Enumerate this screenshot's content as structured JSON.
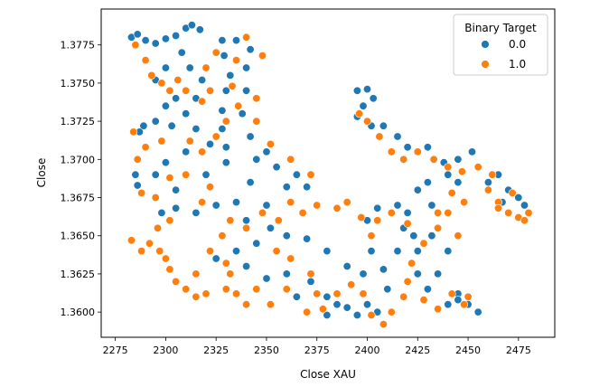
{
  "chart_data": {
    "type": "scatter",
    "title": "",
    "xlabel": "Close XAU",
    "ylabel": "Close",
    "xlim": [
      2268,
      2493
    ],
    "ylim": [
      1.35835,
      1.37985
    ],
    "xticks": [
      2275,
      2300,
      2325,
      2350,
      2375,
      2400,
      2425,
      2450,
      2475
    ],
    "xtick_labels": [
      "2275",
      "2300",
      "2325",
      "2350",
      "2375",
      "2400",
      "2425",
      "2450",
      "2475"
    ],
    "yticks": [
      1.36,
      1.3625,
      1.365,
      1.3675,
      1.37,
      1.3725,
      1.375,
      1.3775
    ],
    "ytick_labels": [
      "1.3600",
      "1.3625",
      "1.3650",
      "1.3675",
      "1.3700",
      "1.3725",
      "1.3750",
      "1.3775"
    ],
    "grid": false,
    "legend": {
      "title": "Binary Target",
      "placement": "top-right",
      "entries": [
        {
          "label": "0.0",
          "color": "#1f77b4"
        },
        {
          "label": "1.0",
          "color": "#ff7f0e"
        }
      ]
    },
    "series": [
      {
        "name": "0.0",
        "color": "#1f77b4",
        "points": [
          [
            2283,
            1.378
          ],
          [
            2286,
            1.3782
          ],
          [
            2290,
            1.3778
          ],
          [
            2295,
            1.3776
          ],
          [
            2300,
            1.3779
          ],
          [
            2305,
            1.3781
          ],
          [
            2310,
            1.3786
          ],
          [
            2313,
            1.3788
          ],
          [
            2317,
            1.3785
          ],
          [
            2308,
            1.377
          ],
          [
            2300,
            1.376
          ],
          [
            2295,
            1.3752
          ],
          [
            2312,
            1.376
          ],
          [
            2318,
            1.3752
          ],
          [
            2315,
            1.374
          ],
          [
            2305,
            1.374
          ],
          [
            2300,
            1.3735
          ],
          [
            2310,
            1.373
          ],
          [
            2303,
            1.3722
          ],
          [
            2295,
            1.3725
          ],
          [
            2289,
            1.3722
          ],
          [
            2287,
            1.3718
          ],
          [
            2315,
            1.372
          ],
          [
            2322,
            1.371
          ],
          [
            2310,
            1.3705
          ],
          [
            2300,
            1.3698
          ],
          [
            2295,
            1.369
          ],
          [
            2285,
            1.369
          ],
          [
            2286,
            1.3683
          ],
          [
            2305,
            1.368
          ],
          [
            2320,
            1.369
          ],
          [
            2330,
            1.3698
          ],
          [
            2330,
            1.3708
          ],
          [
            2328,
            1.372
          ],
          [
            2328,
            1.3732
          ],
          [
            2330,
            1.3745
          ],
          [
            2332,
            1.3755
          ],
          [
            2329,
            1.3768
          ],
          [
            2328,
            1.3778
          ],
          [
            2335,
            1.3778
          ],
          [
            2342,
            1.3772
          ],
          [
            2340,
            1.376
          ],
          [
            2340,
            1.3745
          ],
          [
            2338,
            1.373
          ],
          [
            2342,
            1.3715
          ],
          [
            2345,
            1.37
          ],
          [
            2350,
            1.3705
          ],
          [
            2355,
            1.3695
          ],
          [
            2342,
            1.3685
          ],
          [
            2335,
            1.3672
          ],
          [
            2325,
            1.367
          ],
          [
            2315,
            1.3665
          ],
          [
            2305,
            1.3668
          ],
          [
            2298,
            1.3665
          ],
          [
            2340,
            1.366
          ],
          [
            2350,
            1.367
          ],
          [
            2360,
            1.3682
          ],
          [
            2365,
            1.369
          ],
          [
            2370,
            1.3682
          ],
          [
            2352,
            1.3655
          ],
          [
            2345,
            1.3645
          ],
          [
            2335,
            1.364
          ],
          [
            2325,
            1.3635
          ],
          [
            2360,
            1.365
          ],
          [
            2370,
            1.3648
          ],
          [
            2380,
            1.364
          ],
          [
            2390,
            1.363
          ],
          [
            2398,
            1.3625
          ],
          [
            2402,
            1.364
          ],
          [
            2408,
            1.3628
          ],
          [
            2410,
            1.3615
          ],
          [
            2400,
            1.3605
          ],
          [
            2395,
            1.3598
          ],
          [
            2390,
            1.3603
          ],
          [
            2405,
            1.36
          ],
          [
            2380,
            1.361
          ],
          [
            2372,
            1.362
          ],
          [
            2360,
            1.3625
          ],
          [
            2350,
            1.3622
          ],
          [
            2345,
            1.3615
          ],
          [
            2340,
            1.363
          ],
          [
            2365,
            1.361
          ],
          [
            2415,
            1.364
          ],
          [
            2418,
            1.3655
          ],
          [
            2420,
            1.3665
          ],
          [
            2415,
            1.367
          ],
          [
            2405,
            1.3668
          ],
          [
            2400,
            1.366
          ],
          [
            2425,
            1.364
          ],
          [
            2432,
            1.365
          ],
          [
            2440,
            1.364
          ],
          [
            2435,
            1.3625
          ],
          [
            2445,
            1.3612
          ],
          [
            2440,
            1.3605
          ],
          [
            2430,
            1.3615
          ],
          [
            2425,
            1.3625
          ],
          [
            2395,
            1.3745
          ],
          [
            2400,
            1.3746
          ],
          [
            2403,
            1.374
          ],
          [
            2398,
            1.3735
          ],
          [
            2395,
            1.3728
          ],
          [
            2402,
            1.3722
          ],
          [
            2408,
            1.3722
          ],
          [
            2415,
            1.3715
          ],
          [
            2420,
            1.3708
          ],
          [
            2430,
            1.3708
          ],
          [
            2438,
            1.3698
          ],
          [
            2445,
            1.37
          ],
          [
            2452,
            1.3705
          ],
          [
            2440,
            1.369
          ],
          [
            2445,
            1.3685
          ],
          [
            2430,
            1.3685
          ],
          [
            2425,
            1.368
          ],
          [
            2432,
            1.367
          ],
          [
            2460,
            1.3685
          ],
          [
            2465,
            1.369
          ],
          [
            2470,
            1.368
          ],
          [
            2475,
            1.3675
          ],
          [
            2478,
            1.367
          ],
          [
            2467,
            1.3672
          ],
          [
            2450,
            1.3605
          ],
          [
            2445,
            1.3608
          ],
          [
            2455,
            1.36
          ],
          [
            2423,
            1.365
          ],
          [
            2380,
            1.3598
          ],
          [
            2385,
            1.3605
          ]
        ]
      },
      {
        "name": "1.0",
        "color": "#ff7f0e",
        "points": [
          [
            2285,
            1.3775
          ],
          [
            2290,
            1.3765
          ],
          [
            2293,
            1.3755
          ],
          [
            2298,
            1.375
          ],
          [
            2302,
            1.3745
          ],
          [
            2306,
            1.3752
          ],
          [
            2310,
            1.3745
          ],
          [
            2318,
            1.3738
          ],
          [
            2322,
            1.3745
          ],
          [
            2320,
            1.376
          ],
          [
            2325,
            1.377
          ],
          [
            2335,
            1.3765
          ],
          [
            2333,
            1.3748
          ],
          [
            2336,
            1.3735
          ],
          [
            2330,
            1.3725
          ],
          [
            2325,
            1.3715
          ],
          [
            2318,
            1.3705
          ],
          [
            2312,
            1.3712
          ],
          [
            2298,
            1.3712
          ],
          [
            2290,
            1.3708
          ],
          [
            2286,
            1.37
          ],
          [
            2284,
            1.3718
          ],
          [
            2288,
            1.3678
          ],
          [
            2295,
            1.3675
          ],
          [
            2302,
            1.3688
          ],
          [
            2310,
            1.369
          ],
          [
            2322,
            1.3682
          ],
          [
            2318,
            1.3672
          ],
          [
            2302,
            1.366
          ],
          [
            2296,
            1.3655
          ],
          [
            2283,
            1.3647
          ],
          [
            2288,
            1.364
          ],
          [
            2292,
            1.3645
          ],
          [
            2297,
            1.364
          ],
          [
            2300,
            1.3635
          ],
          [
            2302,
            1.3628
          ],
          [
            2305,
            1.362
          ],
          [
            2310,
            1.3615
          ],
          [
            2315,
            1.361
          ],
          [
            2320,
            1.3612
          ],
          [
            2315,
            1.3625
          ],
          [
            2322,
            1.364
          ],
          [
            2330,
            1.3632
          ],
          [
            2328,
            1.365
          ],
          [
            2332,
            1.366
          ],
          [
            2340,
            1.3655
          ],
          [
            2348,
            1.3665
          ],
          [
            2356,
            1.366
          ],
          [
            2362,
            1.3672
          ],
          [
            2368,
            1.3665
          ],
          [
            2375,
            1.367
          ],
          [
            2385,
            1.3668
          ],
          [
            2390,
            1.3672
          ],
          [
            2372,
            1.369
          ],
          [
            2362,
            1.37
          ],
          [
            2352,
            1.371
          ],
          [
            2345,
            1.3725
          ],
          [
            2345,
            1.374
          ],
          [
            2348,
            1.3768
          ],
          [
            2340,
            1.378
          ],
          [
            2355,
            1.364
          ],
          [
            2362,
            1.3635
          ],
          [
            2372,
            1.3625
          ],
          [
            2375,
            1.3612
          ],
          [
            2370,
            1.36
          ],
          [
            2378,
            1.3602
          ],
          [
            2385,
            1.3612
          ],
          [
            2392,
            1.3618
          ],
          [
            2398,
            1.3612
          ],
          [
            2402,
            1.3598
          ],
          [
            2408,
            1.3592
          ],
          [
            2412,
            1.36
          ],
          [
            2418,
            1.361
          ],
          [
            2420,
            1.362
          ],
          [
            2428,
            1.3608
          ],
          [
            2435,
            1.3602
          ],
          [
            2442,
            1.3612
          ],
          [
            2448,
            1.3605
          ],
          [
            2450,
            1.361
          ],
          [
            2422,
            1.3632
          ],
          [
            2428,
            1.3645
          ],
          [
            2435,
            1.3655
          ],
          [
            2440,
            1.3665
          ],
          [
            2445,
            1.365
          ],
          [
            2420,
            1.3658
          ],
          [
            2412,
            1.3665
          ],
          [
            2405,
            1.366
          ],
          [
            2402,
            1.365
          ],
          [
            2397,
            1.3662
          ],
          [
            2345,
            1.3615
          ],
          [
            2352,
            1.3605
          ],
          [
            2360,
            1.3615
          ],
          [
            2340,
            1.3605
          ],
          [
            2335,
            1.3612
          ],
          [
            2332,
            1.3625
          ],
          [
            2330,
            1.3615
          ],
          [
            2396,
            1.373
          ],
          [
            2400,
            1.3725
          ],
          [
            2406,
            1.3715
          ],
          [
            2412,
            1.3705
          ],
          [
            2418,
            1.37
          ],
          [
            2425,
            1.3705
          ],
          [
            2433,
            1.37
          ],
          [
            2440,
            1.3695
          ],
          [
            2447,
            1.3692
          ],
          [
            2442,
            1.3678
          ],
          [
            2448,
            1.3672
          ],
          [
            2435,
            1.3665
          ],
          [
            2455,
            1.3695
          ],
          [
            2460,
            1.368
          ],
          [
            2465,
            1.3672
          ],
          [
            2470,
            1.3665
          ],
          [
            2475,
            1.3662
          ],
          [
            2480,
            1.3665
          ],
          [
            2472,
            1.3678
          ],
          [
            2462,
            1.369
          ],
          [
            2465,
            1.3668
          ],
          [
            2478,
            1.366
          ]
        ]
      }
    ]
  }
}
